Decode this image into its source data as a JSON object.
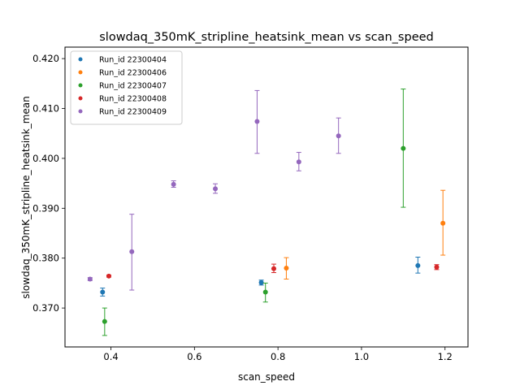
{
  "chart_data": {
    "type": "scatter",
    "title": "slowdaq_350mK_stripline_heatsink_mean vs scan_speed",
    "xlabel": "scan_speed",
    "ylabel": "slowdaq_350mK_stripline_heatsink_mean",
    "xlim": [
      0.29,
      1.255
    ],
    "ylim": [
      0.3622,
      0.4223
    ],
    "xticks": [
      "0.4",
      "0.6",
      "0.8",
      "1.0",
      "1.2"
    ],
    "yticks": [
      "0.370",
      "0.380",
      "0.390",
      "0.400",
      "0.410",
      "0.420"
    ],
    "error_bars": true,
    "legend_position": "top-left",
    "grid": false,
    "series": [
      {
        "name": "Run_id 22300404",
        "color": "#1f77b4",
        "points": [
          {
            "x": 0.38,
            "y": 0.3732,
            "ylow": 0.3724,
            "yhigh": 0.374
          },
          {
            "x": 0.76,
            "y": 0.3751,
            "ylow": 0.3746,
            "yhigh": 0.3756
          },
          {
            "x": 1.135,
            "y": 0.3785,
            "ylow": 0.377,
            "yhigh": 0.3802
          }
        ]
      },
      {
        "name": "Run_id 22300406",
        "color": "#ff7f0e",
        "points": [
          {
            "x": 0.82,
            "y": 0.378,
            "ylow": 0.3758,
            "yhigh": 0.3801
          },
          {
            "x": 1.195,
            "y": 0.387,
            "ylow": 0.3806,
            "yhigh": 0.3936
          }
        ]
      },
      {
        "name": "Run_id 22300407",
        "color": "#2ca02c",
        "points": [
          {
            "x": 0.385,
            "y": 0.3673,
            "ylow": 0.3645,
            "yhigh": 0.37
          },
          {
            "x": 0.77,
            "y": 0.3732,
            "ylow": 0.3712,
            "yhigh": 0.375
          },
          {
            "x": 1.1,
            "y": 0.402,
            "ylow": 0.3902,
            "yhigh": 0.4139
          }
        ]
      },
      {
        "name": "Run_id 22300408",
        "color": "#d62728",
        "points": [
          {
            "x": 0.395,
            "y": 0.3764,
            "ylow": 0.3762,
            "yhigh": 0.3766
          },
          {
            "x": 0.79,
            "y": 0.3779,
            "ylow": 0.3771,
            "yhigh": 0.3788
          },
          {
            "x": 1.18,
            "y": 0.3782,
            "ylow": 0.3777,
            "yhigh": 0.3787
          }
        ]
      },
      {
        "name": "Run_id 22300409",
        "color": "#9467bd",
        "points": [
          {
            "x": 0.35,
            "y": 0.3758,
            "ylow": 0.3755,
            "yhigh": 0.3761
          },
          {
            "x": 0.45,
            "y": 0.3813,
            "ylow": 0.3736,
            "yhigh": 0.3888
          },
          {
            "x": 0.55,
            "y": 0.3948,
            "ylow": 0.3942,
            "yhigh": 0.3955
          },
          {
            "x": 0.65,
            "y": 0.3939,
            "ylow": 0.393,
            "yhigh": 0.3949
          },
          {
            "x": 0.75,
            "y": 0.4074,
            "ylow": 0.401,
            "yhigh": 0.4136
          },
          {
            "x": 0.85,
            "y": 0.3993,
            "ylow": 0.3975,
            "yhigh": 0.4012
          },
          {
            "x": 0.945,
            "y": 0.4045,
            "ylow": 0.401,
            "yhigh": 0.4081
          }
        ]
      }
    ]
  }
}
